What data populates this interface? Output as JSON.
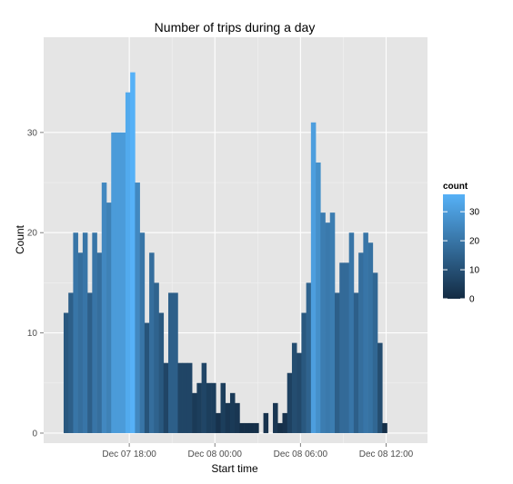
{
  "chart_data": {
    "type": "bar",
    "title": "Number of trips during a day",
    "xlabel": "Start time",
    "ylabel": "Count",
    "x_tick_labels": [
      "Dec 07 18:00",
      "Dec 08 00:00",
      "Dec 08 06:00",
      "Dec 08 12:00"
    ],
    "x_tick_hours": [
      18,
      24,
      30,
      36
    ],
    "xlim_hours": [
      12.0,
      38.9
    ],
    "bin_width_hours": 0.3333,
    "first_bin_start_hour": 13.4,
    "ylim": [
      -1,
      39.5
    ],
    "y_ticks": [
      0,
      10,
      20,
      30
    ],
    "counts": [
      12,
      14,
      20,
      18,
      20,
      14,
      20,
      18,
      25,
      23,
      30,
      30,
      30,
      34,
      36,
      25,
      20,
      11,
      18,
      15,
      12,
      7,
      14,
      14,
      7,
      7,
      7,
      4,
      5,
      7,
      5,
      5,
      2,
      5,
      3,
      4,
      3,
      1,
      1,
      1,
      1,
      0,
      2,
      0,
      3,
      1,
      2,
      6,
      9,
      8,
      12,
      15,
      31,
      27,
      22,
      21,
      22,
      14,
      17,
      17,
      20,
      14,
      18,
      20,
      19,
      16,
      9,
      1
    ],
    "grid": true,
    "legend": {
      "title": "count",
      "ticks": [
        0,
        10,
        20,
        30
      ],
      "placement": "right",
      "colors": {
        "low": "#132b43",
        "high": "#56b1f7"
      }
    },
    "colors": {
      "panel_bg": "#e5e5e5",
      "grid_major": "#ffffff",
      "grid_minor": "#f2f2f2"
    }
  }
}
